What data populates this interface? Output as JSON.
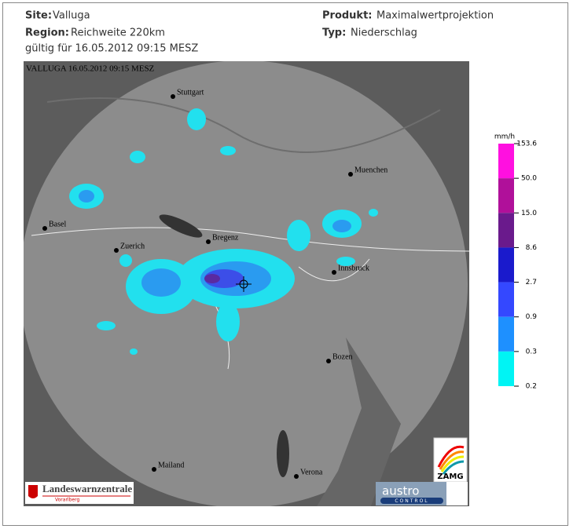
{
  "header": {
    "site_label": "Site:",
    "site": "Valluga",
    "region_label": "Region:",
    "region": "Reichweite 220km",
    "valid": "gültig für 16.05.2012 09:15 MESZ",
    "product_label": "Produkt:",
    "product": "Maximalwertprojektion",
    "type_label": "Typ:",
    "type": "Niederschlag"
  },
  "map": {
    "caption": "VALLUGA   16.05.2012 09:15 MESZ",
    "cities": [
      "Stuttgart",
      "Muenchen",
      "Basel",
      "Zuerich",
      "Bregenz",
      "Innsbruck",
      "Bozen",
      "Mailand",
      "Verona"
    ]
  },
  "legend": {
    "unit": "mm/h",
    "levels": [
      "153.6",
      "50.0",
      "15.0",
      "8.6",
      "2.7",
      "0.9",
      "0.3",
      "0.2"
    ]
  },
  "logos": {
    "lwz": "Landeswarnzentrale",
    "lwz_sub": "Vorarlberg",
    "austro": "austro",
    "control": "CONTROL",
    "zamg": "ZAMG"
  }
}
